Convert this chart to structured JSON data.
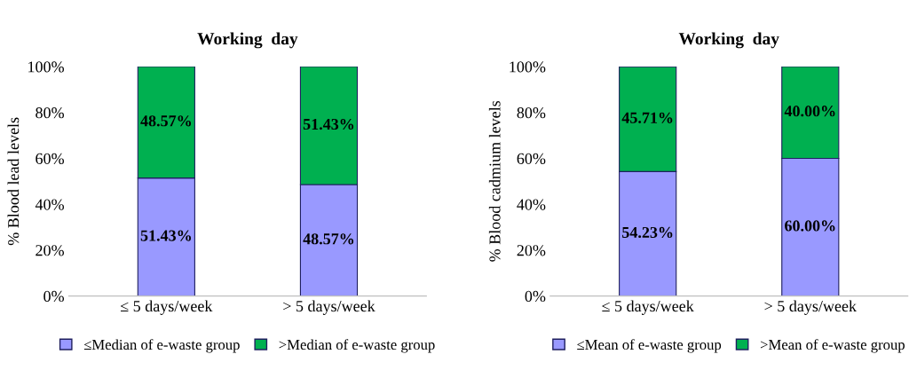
{
  "chart_data": [
    {
      "type": "bar",
      "title": "Working  day",
      "ylabel": "% Blood lead levels",
      "categories": [
        "≤ 5 days/week",
        "> 5 days/week"
      ],
      "stacked": true,
      "legend": "bottom",
      "grid": false,
      "ylim": [
        0,
        100
      ],
      "yticks": [
        {
          "value": 0,
          "label": "0%"
        },
        {
          "value": 20,
          "label": "20%"
        },
        {
          "value": 40,
          "label": "40%"
        },
        {
          "value": 60,
          "label": "60%"
        },
        {
          "value": 80,
          "label": "80%"
        },
        {
          "value": 100,
          "label": "100%"
        }
      ],
      "series": [
        {
          "name": "≤Median of e-waste group",
          "color": "#9999ff",
          "values": [
            51.43,
            48.57
          ],
          "value_labels": [
            "51.43%",
            "48.57%"
          ]
        },
        {
          "name": ">Median of e-waste group",
          "color": "#00b050",
          "values": [
            48.57,
            51.43
          ],
          "value_labels": [
            "48.57%",
            "51.43%"
          ]
        }
      ]
    },
    {
      "type": "bar",
      "title": "Working  day",
      "ylabel": "% Blood cadmium levels",
      "categories": [
        "≤ 5 days/week",
        "> 5 days/week"
      ],
      "stacked": true,
      "legend": "bottom",
      "grid": false,
      "ylim": [
        0,
        100
      ],
      "yticks": [
        {
          "value": 0,
          "label": "0%"
        },
        {
          "value": 20,
          "label": "20%"
        },
        {
          "value": 40,
          "label": "40%"
        },
        {
          "value": 60,
          "label": "60%"
        },
        {
          "value": 80,
          "label": "80%"
        },
        {
          "value": 100,
          "label": "100%"
        }
      ],
      "series": [
        {
          "name": "≤Mean of e-waste group",
          "color": "#9999ff",
          "values": [
            54.23,
            60.0
          ],
          "value_labels": [
            "54.23%",
            "60.00%"
          ]
        },
        {
          "name": ">Mean of e-waste group",
          "color": "#00b050",
          "values": [
            45.71,
            40.0
          ],
          "value_labels": [
            "45.71%",
            "40.00%"
          ]
        }
      ]
    }
  ]
}
